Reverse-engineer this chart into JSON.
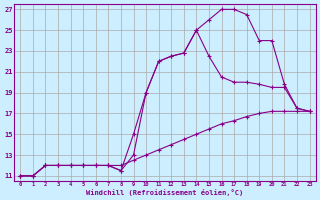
{
  "xlabel": "Windchill (Refroidissement éolien,°C)",
  "bg_color": "#cceeff",
  "grid_color": "#aaaaaa",
  "line_color": "#880088",
  "xlim": [
    -0.5,
    23.5
  ],
  "ylim": [
    10.5,
    27.5
  ],
  "xticks": [
    0,
    1,
    2,
    3,
    4,
    5,
    6,
    7,
    8,
    9,
    10,
    11,
    12,
    13,
    14,
    15,
    16,
    17,
    18,
    19,
    20,
    21,
    22,
    23
  ],
  "yticks": [
    11,
    13,
    15,
    17,
    19,
    21,
    23,
    25,
    27
  ],
  "line1_x": [
    0,
    1,
    2,
    3,
    4,
    5,
    6,
    7,
    8,
    9,
    10,
    11,
    12,
    13,
    14,
    15,
    16,
    17,
    18,
    19,
    20,
    21,
    22,
    23
  ],
  "line1_y": [
    11,
    11,
    12,
    12,
    12,
    12,
    12,
    12,
    12,
    12.5,
    13,
    13.5,
    14,
    14.5,
    15,
    15.5,
    16,
    16.3,
    16.7,
    17,
    17.2,
    17.2,
    17.2,
    17.2
  ],
  "line2_x": [
    0,
    1,
    2,
    3,
    4,
    5,
    6,
    7,
    8,
    9,
    10,
    11,
    12,
    13,
    14,
    15,
    16,
    17,
    18,
    19,
    20,
    21,
    22,
    23
  ],
  "line2_y": [
    11,
    11,
    12,
    12,
    12,
    12,
    12,
    12,
    11.5,
    15,
    19,
    22,
    22.5,
    22.8,
    25,
    22.5,
    20.5,
    20,
    20,
    19.8,
    19.5,
    19.5,
    17.5,
    17.2
  ],
  "line3_x": [
    0,
    1,
    2,
    3,
    4,
    5,
    6,
    7,
    8,
    9,
    10,
    11,
    12,
    13,
    14,
    15,
    16,
    17,
    18,
    19,
    20,
    21,
    22,
    23
  ],
  "line3_y": [
    11,
    11,
    12,
    12,
    12,
    12,
    12,
    12,
    11.5,
    13,
    19,
    22,
    22.5,
    22.8,
    25,
    26,
    27,
    27,
    26.5,
    24,
    24,
    19.8,
    17.5,
    17.2
  ]
}
